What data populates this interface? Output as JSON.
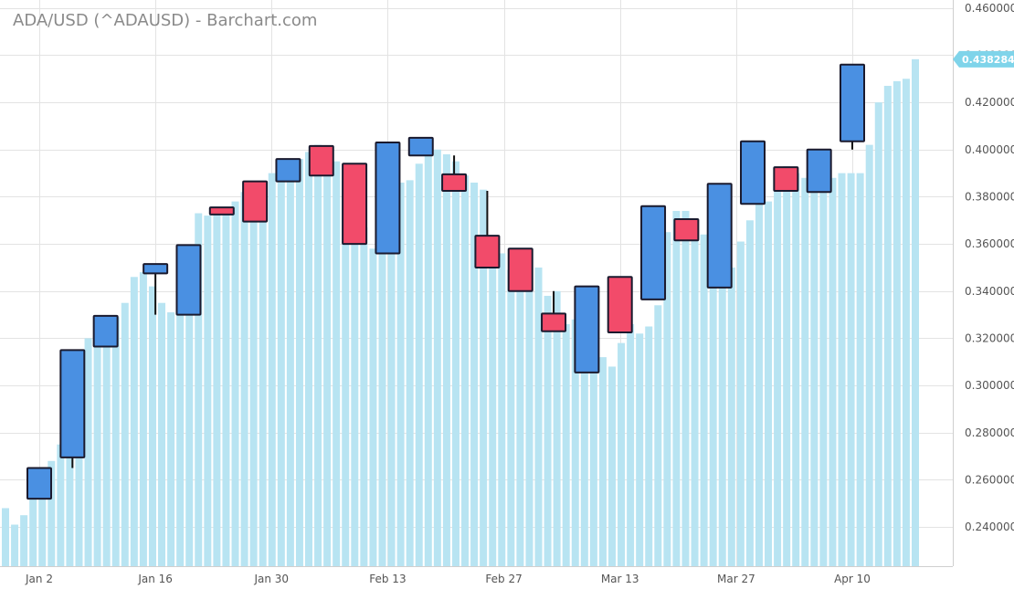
{
  "chart_data": {
    "type": "candlestick",
    "title": "ADA/USD (^ADAUSD) - Barchart.com",
    "ylim": [
      0.2234,
      0.4634
    ],
    "y_ticks": [
      "0.460000",
      "0.440000",
      "0.420000",
      "0.400000",
      "0.380000",
      "0.360000",
      "0.340000",
      "0.320000",
      "0.300000",
      "0.280000",
      "0.260000",
      "0.240000"
    ],
    "x_ticks": [
      {
        "label": "Jan 2",
        "date": "2023-01-02"
      },
      {
        "label": "Jan 16",
        "date": "2023-01-16"
      },
      {
        "label": "Jan 30",
        "date": "2023-01-30"
      },
      {
        "label": "Feb 13",
        "date": "2023-02-13"
      },
      {
        "label": "Feb 27",
        "date": "2023-02-27"
      },
      {
        "label": "Mar 13",
        "date": "2023-03-13"
      },
      {
        "label": "Mar 27",
        "date": "2023-03-27"
      },
      {
        "label": "Apr 10",
        "date": "2023-04-10"
      }
    ],
    "last_price": "0.438284",
    "colors": {
      "up": "#4a90e2",
      "down": "#f24b6a",
      "daily_close": "#b8e4f2",
      "last_price_tag": "#7fd4ea",
      "grid": "#e3e3e3",
      "title": "#8a8a8a"
    },
    "candles": [
      {
        "date": "2023-01-02",
        "open": 0.252,
        "high": 0.265,
        "low": 0.252,
        "close": 0.265
      },
      {
        "date": "2023-01-06",
        "open": 0.2695,
        "high": 0.315,
        "low": 0.265,
        "close": 0.315
      },
      {
        "date": "2023-01-10",
        "open": 0.3165,
        "high": 0.3295,
        "low": 0.3165,
        "close": 0.3295
      },
      {
        "date": "2023-01-16",
        "open": 0.3475,
        "high": 0.3515,
        "low": 0.33,
        "close": 0.3515
      },
      {
        "date": "2023-01-20",
        "open": 0.33,
        "high": 0.3595,
        "low": 0.33,
        "close": 0.3595
      },
      {
        "date": "2023-01-24",
        "open": 0.3755,
        "high": 0.3755,
        "low": 0.3725,
        "close": 0.3725
      },
      {
        "date": "2023-01-28",
        "open": 0.3865,
        "high": 0.3865,
        "low": 0.3695,
        "close": 0.3695
      },
      {
        "date": "2023-02-01",
        "open": 0.3865,
        "high": 0.396,
        "low": 0.3865,
        "close": 0.396
      },
      {
        "date": "2023-02-05",
        "open": 0.4015,
        "high": 0.4015,
        "low": 0.389,
        "close": 0.389
      },
      {
        "date": "2023-02-09",
        "open": 0.394,
        "high": 0.394,
        "low": 0.36,
        "close": 0.36
      },
      {
        "date": "2023-02-13",
        "open": 0.356,
        "high": 0.403,
        "low": 0.356,
        "close": 0.403
      },
      {
        "date": "2023-02-17",
        "open": 0.3975,
        "high": 0.405,
        "low": 0.3975,
        "close": 0.405
      },
      {
        "date": "2023-02-21",
        "open": 0.3895,
        "high": 0.3975,
        "low": 0.3825,
        "close": 0.3825
      },
      {
        "date": "2023-02-25",
        "open": 0.3635,
        "high": 0.3825,
        "low": 0.35,
        "close": 0.35
      },
      {
        "date": "2023-03-01",
        "open": 0.358,
        "high": 0.358,
        "low": 0.34,
        "close": 0.34
      },
      {
        "date": "2023-03-05",
        "open": 0.3305,
        "high": 0.34,
        "low": 0.323,
        "close": 0.323
      },
      {
        "date": "2023-03-09",
        "open": 0.3055,
        "high": 0.342,
        "low": 0.3055,
        "close": 0.342
      },
      {
        "date": "2023-03-13",
        "open": 0.346,
        "high": 0.346,
        "low": 0.3225,
        "close": 0.3225
      },
      {
        "date": "2023-03-17",
        "open": 0.3365,
        "high": 0.376,
        "low": 0.3365,
        "close": 0.376
      },
      {
        "date": "2023-03-21",
        "open": 0.3705,
        "high": 0.3705,
        "low": 0.3615,
        "close": 0.3615
      },
      {
        "date": "2023-03-25",
        "open": 0.3415,
        "high": 0.3855,
        "low": 0.3415,
        "close": 0.3855
      },
      {
        "date": "2023-03-29",
        "open": 0.377,
        "high": 0.4035,
        "low": 0.377,
        "close": 0.4035
      },
      {
        "date": "2023-04-02",
        "open": 0.3925,
        "high": 0.3925,
        "low": 0.3825,
        "close": 0.3825
      },
      {
        "date": "2023-04-06",
        "open": 0.382,
        "high": 0.4,
        "low": 0.382,
        "close": 0.4
      },
      {
        "date": "2023-04-10",
        "open": 0.4035,
        "high": 0.436,
        "low": 0.4,
        "close": 0.436
      }
    ],
    "daily_closes": [
      0.248,
      0.241,
      0.245,
      0.256,
      0.262,
      0.268,
      0.275,
      0.295,
      0.305,
      0.32,
      0.322,
      0.325,
      0.329,
      0.335,
      0.346,
      0.348,
      0.342,
      0.335,
      0.331,
      0.337,
      0.35,
      0.373,
      0.372,
      0.375,
      0.374,
      0.378,
      0.382,
      0.383,
      0.385,
      0.39,
      0.392,
      0.394,
      0.396,
      0.399,
      0.402,
      0.4,
      0.395,
      0.387,
      0.371,
      0.367,
      0.358,
      0.361,
      0.377,
      0.386,
      0.387,
      0.394,
      0.399,
      0.4,
      0.398,
      0.395,
      0.389,
      0.386,
      0.383,
      0.36,
      0.356,
      0.349,
      0.352,
      0.349,
      0.35,
      0.338,
      0.34,
      0.326,
      0.328,
      0.32,
      0.307,
      0.312,
      0.308,
      0.318,
      0.326,
      0.322,
      0.325,
      0.334,
      0.365,
      0.374,
      0.374,
      0.362,
      0.364,
      0.362,
      0.36,
      0.35,
      0.361,
      0.37,
      0.377,
      0.378,
      0.392,
      0.393,
      0.39,
      0.388,
      0.389,
      0.388,
      0.388,
      0.39,
      0.39,
      0.39,
      0.402,
      0.42,
      0.427,
      0.429,
      0.43,
      0.4383
    ]
  }
}
